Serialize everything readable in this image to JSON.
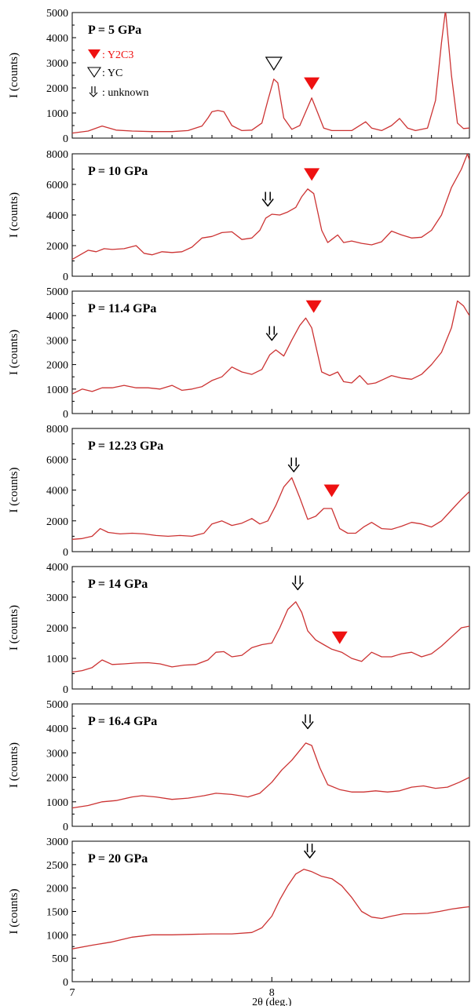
{
  "figure": {
    "x_axis_label": "2θ (deg.)",
    "x_tick_labels": [
      "7",
      "8"
    ],
    "legend": {
      "y2c3": "Y2C3",
      "yc": "YC",
      "unknown": "unknown"
    }
  },
  "colors": {
    "trace": "#cc3333",
    "y2c3_marker": "#ee1111",
    "axis": "#000000"
  },
  "chart_data": [
    {
      "type": "line",
      "panel_label": "P = 5 GPa",
      "ylabel": "I (counts)",
      "ylim": [
        0,
        5000
      ],
      "yticks": [
        0,
        1000,
        2000,
        3000,
        4000,
        5000
      ],
      "xlim": [
        7,
        8.99
      ],
      "x": [
        7.0,
        7.08,
        7.15,
        7.22,
        7.3,
        7.4,
        7.5,
        7.58,
        7.65,
        7.68,
        7.7,
        7.73,
        7.76,
        7.8,
        7.85,
        7.9,
        7.95,
        7.98,
        8.01,
        8.03,
        8.06,
        8.1,
        8.14,
        8.17,
        8.2,
        8.23,
        8.26,
        8.3,
        8.4,
        8.47,
        8.5,
        8.55,
        8.6,
        8.64,
        8.68,
        8.72,
        8.78,
        8.82,
        8.85,
        8.87,
        8.9,
        8.93,
        8.96,
        8.99
      ],
      "y": [
        200,
        280,
        480,
        320,
        280,
        260,
        260,
        300,
        480,
        800,
        1050,
        1100,
        1050,
        500,
        300,
        320,
        600,
        1500,
        2350,
        2200,
        800,
        350,
        500,
        1050,
        1600,
        1000,
        400,
        300,
        300,
        650,
        400,
        300,
        500,
        780,
        400,
        300,
        400,
        1500,
        3800,
        5100,
        2500,
        600,
        380,
        400
      ],
      "markers": [
        {
          "kind": "yc",
          "x": 8.01,
          "y": 3000
        },
        {
          "kind": "y2c3",
          "x": 8.2,
          "y": 2200
        }
      ]
    },
    {
      "type": "line",
      "panel_label": "P = 10 GPa",
      "ylabel": "I (counts)",
      "ylim": [
        0,
        8000
      ],
      "yticks": [
        0,
        2000,
        4000,
        6000,
        8000
      ],
      "xlim": [
        7,
        8.99
      ],
      "x": [
        7.0,
        7.04,
        7.08,
        7.12,
        7.16,
        7.2,
        7.26,
        7.32,
        7.36,
        7.4,
        7.45,
        7.5,
        7.55,
        7.6,
        7.65,
        7.7,
        7.75,
        7.8,
        7.85,
        7.9,
        7.94,
        7.97,
        8.0,
        8.04,
        8.08,
        8.12,
        8.15,
        8.18,
        8.21,
        8.25,
        8.28,
        8.3,
        8.33,
        8.36,
        8.4,
        8.45,
        8.5,
        8.55,
        8.6,
        8.65,
        8.7,
        8.75,
        8.8,
        8.85,
        8.9,
        8.95,
        8.98,
        8.99
      ],
      "y": [
        1100,
        1400,
        1700,
        1600,
        1800,
        1750,
        1800,
        2000,
        1500,
        1400,
        1600,
        1550,
        1600,
        1900,
        2500,
        2600,
        2850,
        2900,
        2400,
        2500,
        3000,
        3800,
        4050,
        4000,
        4200,
        4500,
        5200,
        5700,
        5400,
        3000,
        2200,
        2400,
        2700,
        2200,
        2300,
        2150,
        2050,
        2250,
        2950,
        2700,
        2500,
        2550,
        3000,
        4000,
        5800,
        7000,
        8000,
        7600
      ],
      "markers": [
        {
          "kind": "unknown",
          "x": 7.98,
          "y": 5000
        },
        {
          "kind": "y2c3",
          "x": 8.2,
          "y": 6700
        }
      ]
    },
    {
      "type": "line",
      "panel_label": "P = 11.4 GPa",
      "ylabel": "I (counts)",
      "ylim": [
        0,
        5000
      ],
      "yticks": [
        0,
        1000,
        2000,
        3000,
        4000,
        5000
      ],
      "xlim": [
        7,
        8.99
      ],
      "x": [
        7.0,
        7.05,
        7.1,
        7.15,
        7.2,
        7.26,
        7.32,
        7.38,
        7.44,
        7.5,
        7.55,
        7.6,
        7.65,
        7.7,
        7.75,
        7.8,
        7.85,
        7.9,
        7.95,
        7.99,
        8.02,
        8.06,
        8.1,
        8.14,
        8.17,
        8.2,
        8.25,
        8.29,
        8.33,
        8.36,
        8.4,
        8.44,
        8.48,
        8.52,
        8.56,
        8.6,
        8.65,
        8.7,
        8.75,
        8.8,
        8.85,
        8.9,
        8.93,
        8.96,
        8.99
      ],
      "y": [
        800,
        1000,
        900,
        1050,
        1050,
        1150,
        1050,
        1050,
        1000,
        1150,
        950,
        1000,
        1100,
        1350,
        1500,
        1900,
        1700,
        1600,
        1800,
        2400,
        2600,
        2350,
        3000,
        3600,
        3900,
        3500,
        1700,
        1550,
        1700,
        1300,
        1250,
        1550,
        1200,
        1250,
        1400,
        1550,
        1450,
        1400,
        1600,
        2000,
        2500,
        3500,
        4600,
        4400,
        4000
      ],
      "markers": [
        {
          "kind": "unknown",
          "x": 8.0,
          "y": 3250
        },
        {
          "kind": "y2c3",
          "x": 8.21,
          "y": 4400
        }
      ]
    },
    {
      "type": "line",
      "panel_label": "P = 12.23 GPa",
      "ylabel": "I (counts)",
      "ylim": [
        0,
        8000
      ],
      "yticks": [
        0,
        2000,
        4000,
        6000,
        8000
      ],
      "xlim": [
        7,
        8.99
      ],
      "x": [
        7.0,
        7.05,
        7.1,
        7.14,
        7.18,
        7.24,
        7.3,
        7.36,
        7.42,
        7.48,
        7.54,
        7.6,
        7.66,
        7.7,
        7.75,
        7.8,
        7.85,
        7.9,
        7.94,
        7.98,
        8.02,
        8.06,
        8.1,
        8.14,
        8.18,
        8.22,
        8.26,
        8.3,
        8.34,
        8.38,
        8.42,
        8.46,
        8.5,
        8.55,
        8.6,
        8.65,
        8.7,
        8.75,
        8.8,
        8.85,
        8.9,
        8.95,
        8.99
      ],
      "y": [
        800,
        850,
        1000,
        1500,
        1250,
        1150,
        1200,
        1150,
        1050,
        1000,
        1050,
        1000,
        1200,
        1800,
        2000,
        1700,
        1850,
        2150,
        1800,
        2000,
        3000,
        4200,
        4800,
        3500,
        2100,
        2300,
        2800,
        2800,
        1500,
        1200,
        1200,
        1600,
        1900,
        1500,
        1450,
        1650,
        1900,
        1800,
        1600,
        2000,
        2700,
        3400,
        3900
      ],
      "markers": [
        {
          "kind": "unknown",
          "x": 8.11,
          "y": 5600
        },
        {
          "kind": "y2c3",
          "x": 8.3,
          "y": 4000
        }
      ]
    },
    {
      "type": "line",
      "panel_label": "P = 14 GPa",
      "ylabel": "I (counts)",
      "ylim": [
        0,
        4000
      ],
      "yticks": [
        0,
        1000,
        2000,
        3000,
        4000
      ],
      "xlim": [
        7,
        8.99
      ],
      "x": [
        7.0,
        7.05,
        7.1,
        7.15,
        7.2,
        7.26,
        7.32,
        7.38,
        7.44,
        7.5,
        7.56,
        7.62,
        7.68,
        7.72,
        7.76,
        7.8,
        7.85,
        7.9,
        7.95,
        8.0,
        8.04,
        8.08,
        8.12,
        8.15,
        8.18,
        8.22,
        8.26,
        8.3,
        8.35,
        8.4,
        8.45,
        8.5,
        8.55,
        8.6,
        8.65,
        8.7,
        8.75,
        8.8,
        8.85,
        8.9,
        8.95,
        8.99
      ],
      "y": [
        550,
        600,
        700,
        950,
        800,
        820,
        850,
        860,
        820,
        720,
        780,
        800,
        950,
        1200,
        1220,
        1050,
        1100,
        1350,
        1450,
        1500,
        2000,
        2600,
        2850,
        2500,
        1900,
        1600,
        1450,
        1300,
        1200,
        1000,
        900,
        1200,
        1050,
        1050,
        1150,
        1200,
        1050,
        1150,
        1400,
        1700,
        2000,
        2050
      ],
      "markers": [
        {
          "kind": "unknown",
          "x": 8.13,
          "y": 3450
        },
        {
          "kind": "y2c3",
          "x": 8.34,
          "y": 1700
        }
      ]
    },
    {
      "type": "line",
      "panel_label": "P = 16.4 GPa",
      "ylabel": "I (counts)",
      "ylim": [
        0,
        5000
      ],
      "yticks": [
        0,
        1000,
        2000,
        3000,
        4000,
        5000
      ],
      "xlim": [
        7,
        8.99
      ],
      "x": [
        7.0,
        7.08,
        7.15,
        7.22,
        7.3,
        7.35,
        7.42,
        7.5,
        7.58,
        7.66,
        7.72,
        7.8,
        7.88,
        7.94,
        8.0,
        8.05,
        8.1,
        8.14,
        8.17,
        8.2,
        8.24,
        8.28,
        8.34,
        8.4,
        8.46,
        8.52,
        8.58,
        8.64,
        8.7,
        8.76,
        8.82,
        8.88,
        8.94,
        8.99
      ],
      "y": [
        750,
        850,
        1000,
        1050,
        1200,
        1250,
        1200,
        1100,
        1150,
        1250,
        1350,
        1300,
        1200,
        1350,
        1800,
        2300,
        2700,
        3100,
        3400,
        3300,
        2400,
        1700,
        1500,
        1400,
        1400,
        1450,
        1400,
        1450,
        1600,
        1650,
        1550,
        1600,
        1800,
        2000
      ],
      "markers": [
        {
          "kind": "unknown",
          "x": 8.18,
          "y": 4250
        }
      ]
    },
    {
      "type": "line",
      "panel_label": "P = 20 GPa",
      "ylabel": "I (counts)",
      "ylim": [
        0,
        3000
      ],
      "yticks": [
        0,
        500,
        1000,
        1500,
        2000,
        2500,
        3000
      ],
      "xlim": [
        7,
        8.99
      ],
      "x": [
        7.0,
        7.1,
        7.2,
        7.3,
        7.4,
        7.5,
        7.6,
        7.7,
        7.8,
        7.9,
        7.95,
        8.0,
        8.04,
        8.08,
        8.12,
        8.16,
        8.2,
        8.25,
        8.3,
        8.35,
        8.4,
        8.45,
        8.5,
        8.55,
        8.6,
        8.66,
        8.72,
        8.78,
        8.84,
        8.9,
        8.95,
        8.99
      ],
      "y": [
        700,
        780,
        850,
        950,
        1000,
        1000,
        1010,
        1020,
        1020,
        1050,
        1150,
        1400,
        1750,
        2050,
        2300,
        2400,
        2350,
        2250,
        2200,
        2050,
        1800,
        1500,
        1380,
        1350,
        1400,
        1450,
        1450,
        1460,
        1500,
        1550,
        1580,
        1600
      ],
      "markers": [
        {
          "kind": "unknown",
          "x": 8.19,
          "y": 2780
        }
      ]
    }
  ]
}
